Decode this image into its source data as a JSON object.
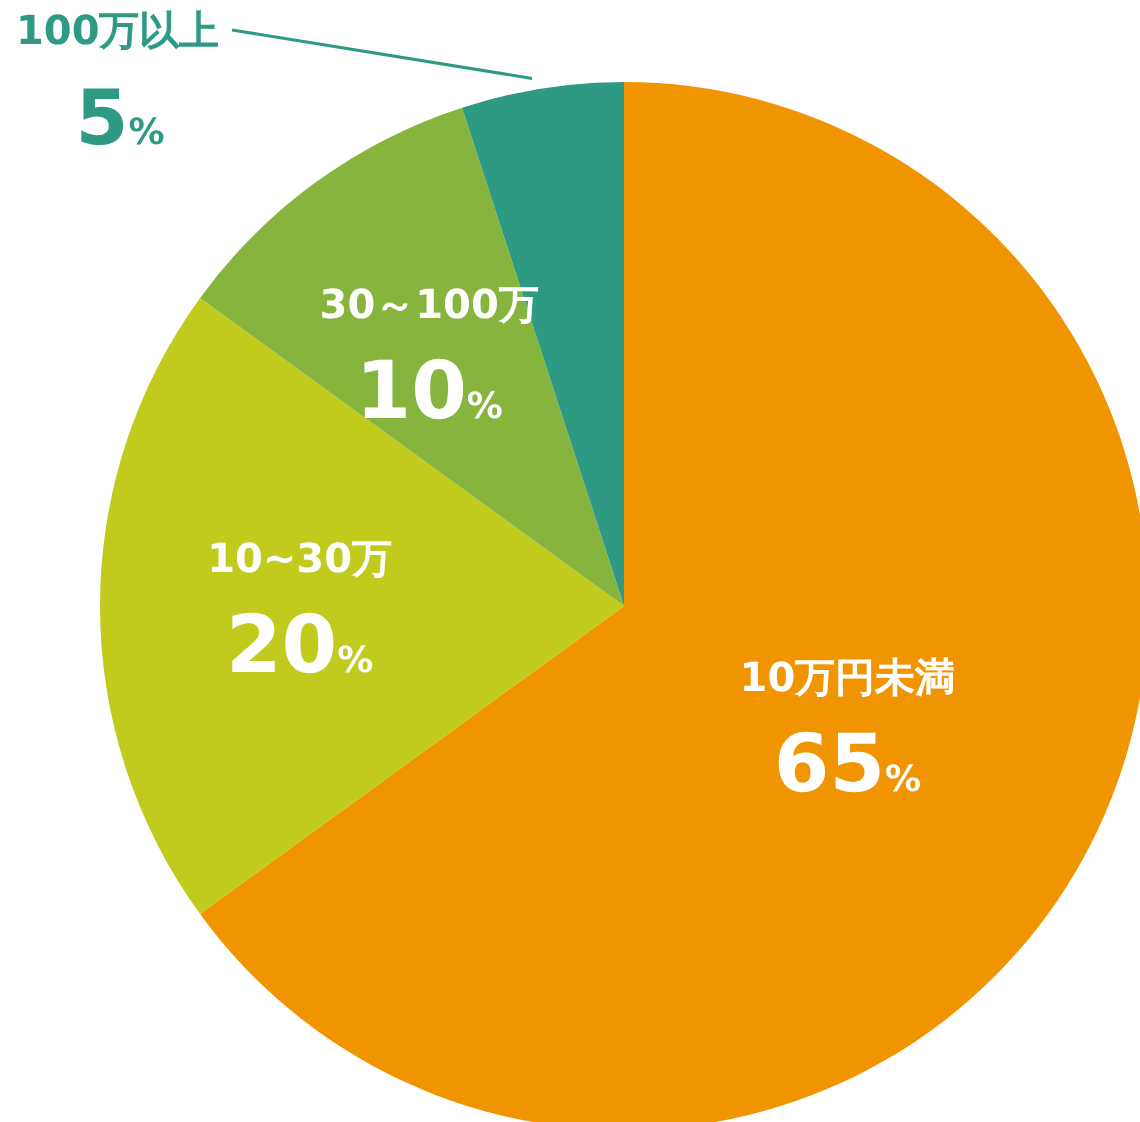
{
  "chart_data": {
    "type": "pie",
    "categories": [
      "10万円未満",
      "10~30万",
      "30～100万",
      "100万以上"
    ],
    "values": [
      65,
      20,
      10,
      5
    ],
    "colors": [
      "#f09400",
      "#c0cb1e",
      "#86b43c",
      "#2e9a84"
    ],
    "value_labels": [
      "65%",
      "20%",
      "10%",
      "5%"
    ]
  }
}
